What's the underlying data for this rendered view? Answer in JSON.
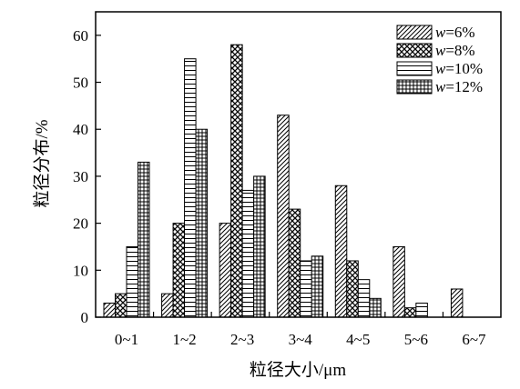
{
  "chart_data": {
    "type": "bar",
    "title": "",
    "xlabel": "粒径大小/μm",
    "ylabel": "粒径分布/%",
    "categories": [
      "0~1",
      "1~2",
      "2~3",
      "3~4",
      "4~5",
      "5~6",
      "6~7"
    ],
    "ylim": [
      0,
      65
    ],
    "yticks": [
      0,
      10,
      20,
      30,
      40,
      50,
      60
    ],
    "grid": false,
    "legend_position": "top-right",
    "series": [
      {
        "name": "w=6%",
        "legend_prefix": "w",
        "legend_suffix": "=6%",
        "pattern": "diagonal",
        "values": [
          3,
          5,
          20,
          43,
          28,
          15,
          6
        ]
      },
      {
        "name": "w=8%",
        "legend_prefix": "w",
        "legend_suffix": "=8%",
        "pattern": "crosshatch",
        "values": [
          5,
          20,
          58,
          23,
          12,
          2,
          0
        ]
      },
      {
        "name": "w=10%",
        "legend_prefix": "w",
        "legend_suffix": "=10%",
        "pattern": "horizontal",
        "values": [
          15,
          55,
          27,
          12,
          8,
          3,
          0
        ]
      },
      {
        "name": "w=12%",
        "legend_prefix": "w",
        "legend_suffix": "=12%",
        "pattern": "grid",
        "values": [
          33,
          40,
          30,
          13,
          4,
          0,
          0
        ]
      }
    ],
    "colors": {
      "bar_stroke": "#000000",
      "background": "#ffffff"
    }
  }
}
